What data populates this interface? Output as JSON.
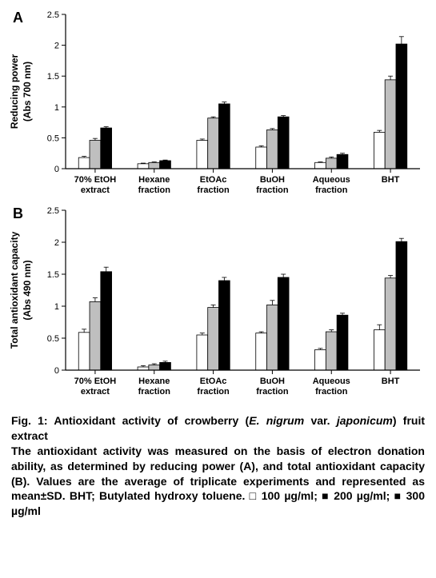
{
  "panelA": {
    "label": "A",
    "type": "bar",
    "ylabel_line1": "Reducing power",
    "ylabel_line2": "(Abs 700 nm)",
    "ylim": [
      0,
      2.5
    ],
    "ytick_step": 0.5,
    "yticks": [
      "0",
      "0.5",
      "1",
      "1.5",
      "2",
      "2.5"
    ],
    "categories": [
      "70% EtOH",
      "Hexane",
      "EtOAc",
      "BuOH",
      "Aqueous",
      "BHT"
    ],
    "category_line2": [
      "extract",
      "fraction",
      "fraction",
      "fraction",
      "fraction",
      ""
    ],
    "series": [
      {
        "name": "100 µg/ml",
        "color": "#ffffff",
        "values": [
          0.18,
          0.08,
          0.46,
          0.35,
          0.1,
          0.59
        ],
        "err": [
          0.02,
          0.01,
          0.02,
          0.02,
          0.01,
          0.03
        ]
      },
      {
        "name": "200 µg/ml",
        "color": "#bfbfbf",
        "values": [
          0.46,
          0.1,
          0.82,
          0.63,
          0.17,
          1.44
        ],
        "err": [
          0.03,
          0.01,
          0.02,
          0.02,
          0.02,
          0.06
        ]
      },
      {
        "name": "300 µg/ml",
        "color": "#000000",
        "values": [
          0.66,
          0.13,
          1.05,
          0.84,
          0.23,
          2.02
        ],
        "err": [
          0.02,
          0.01,
          0.03,
          0.02,
          0.02,
          0.12
        ]
      }
    ],
    "axis_color": "#000000",
    "tick_fontsize": 11,
    "label_fontsize": 12,
    "bar_stroke": "#000000"
  },
  "panelB": {
    "label": "B",
    "type": "bar",
    "ylabel_line1": "Total antioxidant capacity",
    "ylabel_line2": "(Abs 490 nm)",
    "ylim": [
      0,
      2.5
    ],
    "ytick_step": 0.5,
    "yticks": [
      "0",
      "0.5",
      "1",
      "1.5",
      "2",
      "2.5"
    ],
    "categories": [
      "70% EtOH",
      "Hexane",
      "EtOAc",
      "BuOH",
      "Aqueous",
      "BHT"
    ],
    "category_line2": [
      "extract",
      "fraction",
      "fraction",
      "fraction",
      "fraction",
      ""
    ],
    "series": [
      {
        "name": "100 µg/ml",
        "color": "#ffffff",
        "values": [
          0.59,
          0.05,
          0.55,
          0.58,
          0.32,
          0.63
        ],
        "err": [
          0.05,
          0.02,
          0.03,
          0.02,
          0.02,
          0.08
        ]
      },
      {
        "name": "200 µg/ml",
        "color": "#bfbfbf",
        "values": [
          1.07,
          0.08,
          0.98,
          1.02,
          0.6,
          1.44
        ],
        "err": [
          0.06,
          0.02,
          0.04,
          0.07,
          0.03,
          0.04
        ]
      },
      {
        "name": "300 µg/ml",
        "color": "#000000",
        "values": [
          1.54,
          0.12,
          1.4,
          1.45,
          0.86,
          2.01
        ],
        "err": [
          0.07,
          0.02,
          0.05,
          0.05,
          0.03,
          0.05
        ]
      }
    ],
    "axis_color": "#000000",
    "tick_fontsize": 11,
    "label_fontsize": 12,
    "bar_stroke": "#000000"
  },
  "caption": {
    "fig_label": "Fig. 1: Antioxidant activity of crowberry (",
    "species": "E. nigrum ",
    "var_text": "var. ",
    "japonicum": "japonicum",
    "fig_end": ") fruit extract",
    "body": "The antioxidant activity was measured on the basis of electron donation ability, as determined by reducing power (A), and total antioxidant capacity (B). Values are the average of triplicate experiments and represented as mean±SD. BHT; Butylated hydroxy toluene. □ 100 µg/ml; ■ 200 µg/ml; ■ 300 µg/ml"
  }
}
